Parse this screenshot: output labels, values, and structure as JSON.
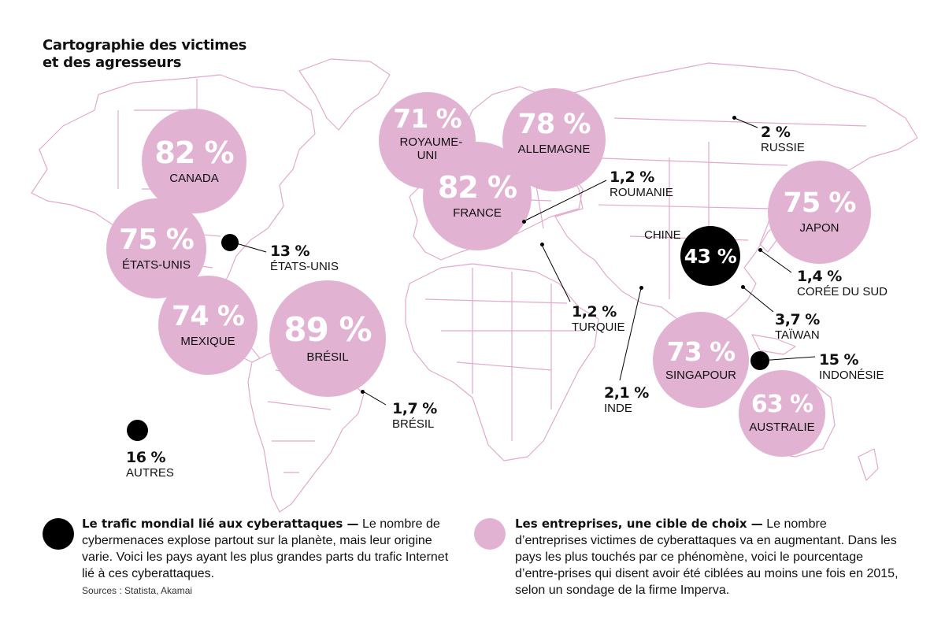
{
  "title_line1": "Cartographie des victimes",
  "title_line2": "et des agresseurs",
  "colors": {
    "enterprise": "#e2b2d2",
    "traffic": "#000000",
    "map_outline": "#e2a9cc"
  },
  "enterprise_bubbles": [
    {
      "country": "CANADA",
      "pct": "82 %"
    },
    {
      "country": "ÉTATS-UNIS",
      "pct": "75 %"
    },
    {
      "country": "MEXIQUE",
      "pct": "74 %"
    },
    {
      "country": "BRÉSIL",
      "pct": "89 %"
    },
    {
      "country": "ROYAUME-UNI",
      "pct": "71 %"
    },
    {
      "country": "ALLEMAGNE",
      "pct": "78 %"
    },
    {
      "country": "FRANCE",
      "pct": "82 %"
    },
    {
      "country": "JAPON",
      "pct": "75 %"
    },
    {
      "country": "SINGAPOUR",
      "pct": "73 %"
    },
    {
      "country": "AUSTRALIE",
      "pct": "63 %"
    }
  ],
  "traffic_labels": [
    {
      "country": "ÉTATS-UNIS",
      "pct": "13 %"
    },
    {
      "country": "BRÉSIL",
      "pct": "1,7 %"
    },
    {
      "country": "AUTRES",
      "pct": "16 %"
    },
    {
      "country": "ROUMANIE",
      "pct": "1,2 %"
    },
    {
      "country": "TURQUIE",
      "pct": "1,2 %"
    },
    {
      "country": "INDE",
      "pct": "2,1 %"
    },
    {
      "country": "RUSSIE",
      "pct": "2 %"
    },
    {
      "country": "CHINE",
      "pct": "43 %"
    },
    {
      "country": "CORÉE DU SUD",
      "pct": "1,4 %"
    },
    {
      "country": "TAÏWAN",
      "pct": "3,7 %"
    },
    {
      "country": "INDONÉSIE",
      "pct": "15 %"
    }
  ],
  "legend": {
    "traffic_title": "Le trafic mondial lié aux cyberattaques —",
    "traffic_text": "Le nombre de cybermenaces explose partout sur la planète, mais leur origine varie. Voici les pays ayant les plus grandes parts du trafic Internet lié à ces cyberattaques.",
    "sources": "Sources : Statista, Akamai",
    "enterprise_title": "Les entreprises, une cible de choix —",
    "enterprise_text": "Le nombre d’entreprises victimes de cyberattaques va en augmentant. Dans les pays les plus touchés par ce phénomène, voici le pourcentage d’entre-prises qui disent avoir été ciblées au moins une fois en 2015, selon un sondage de la firme Imperva."
  }
}
